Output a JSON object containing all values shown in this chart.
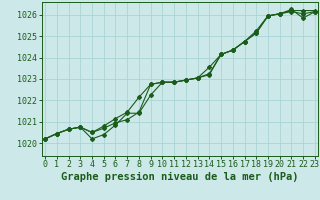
{
  "title": "Graphe pression niveau de la mer (hPa)",
  "xlabel_ticks": [
    0,
    1,
    2,
    3,
    4,
    5,
    6,
    7,
    8,
    9,
    10,
    11,
    12,
    13,
    14,
    15,
    16,
    17,
    18,
    19,
    20,
    21,
    22,
    23
  ],
  "ylim": [
    1019.4,
    1026.6
  ],
  "yticks": [
    1020,
    1021,
    1022,
    1023,
    1024,
    1025,
    1026
  ],
  "xlim": [
    -0.3,
    23.3
  ],
  "bg_color": "#cde8e8",
  "line_color": "#1a5c1a",
  "grid_color": "#aad4d4",
  "series1": [
    1020.2,
    1020.45,
    1020.65,
    1020.75,
    1020.5,
    1020.7,
    1020.95,
    1021.1,
    1021.45,
    1022.75,
    1022.85,
    1022.85,
    1022.95,
    1023.05,
    1023.25,
    1024.15,
    1024.35,
    1024.75,
    1025.15,
    1025.95,
    1026.05,
    1026.15,
    1026.05,
    1026.15
  ],
  "series2": [
    1020.2,
    1020.45,
    1020.65,
    1020.75,
    1020.2,
    1020.4,
    1020.85,
    1021.4,
    1021.4,
    1022.25,
    1022.85,
    1022.85,
    1022.95,
    1023.05,
    1023.2,
    1024.15,
    1024.35,
    1024.75,
    1025.15,
    1025.95,
    1026.05,
    1026.25,
    1025.85,
    1026.15
  ],
  "series3": [
    1020.2,
    1020.45,
    1020.65,
    1020.75,
    1020.5,
    1020.8,
    1021.15,
    1021.45,
    1022.15,
    1022.75,
    1022.85,
    1022.85,
    1022.95,
    1023.05,
    1023.55,
    1024.15,
    1024.35,
    1024.75,
    1025.25,
    1025.95,
    1026.05,
    1026.2,
    1026.2,
    1026.2
  ],
  "title_fontsize": 7.5,
  "tick_fontsize": 6.0
}
